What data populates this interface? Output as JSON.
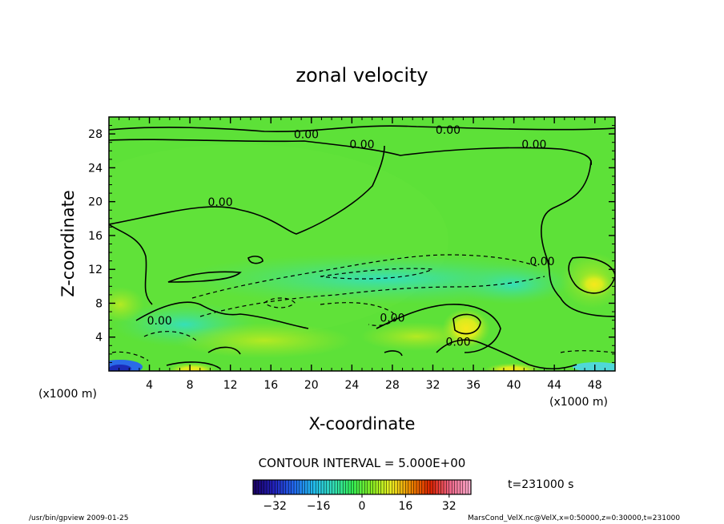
{
  "chart_data": {
    "type": "heatmap",
    "title": "zonal velocity",
    "xlabel": "X-coordinate",
    "ylabel": "Z-coordinate",
    "x_unit": "(x1000 m)",
    "y_unit": "(x1000 m)",
    "xlim": [
      0,
      50
    ],
    "ylim": [
      0,
      30
    ],
    "x_ticks": [
      4,
      8,
      12,
      16,
      20,
      24,
      28,
      32,
      36,
      40,
      44,
      48
    ],
    "y_ticks": [
      4,
      8,
      12,
      16,
      20,
      24,
      28
    ],
    "contour_interval_text": "CONTOUR INTERVAL = 5.000E+00",
    "time_text": "t=231000 s",
    "colorbar": {
      "range": [
        -40,
        40
      ],
      "ticks": [
        -32,
        -16,
        0,
        16,
        32
      ],
      "colors": [
        "#1a0066",
        "#2222bb",
        "#2266ee",
        "#22bbee",
        "#33ddbb",
        "#33ee55",
        "#88ee22",
        "#eeee22",
        "#ee8800",
        "#dd2200",
        "#ee6688",
        "#ffaacc"
      ]
    },
    "contour_labels": [
      {
        "x": 19.5,
        "z": 27.5,
        "text": "0.00"
      },
      {
        "x": 33.5,
        "z": 28.0,
        "text": "0.00"
      },
      {
        "x": 25.0,
        "z": 26.3,
        "text": "0.00"
      },
      {
        "x": 42.0,
        "z": 26.3,
        "text": "0.00"
      },
      {
        "x": 11.0,
        "z": 19.5,
        "text": "0.00"
      },
      {
        "x": 42.8,
        "z": 12.5,
        "text": "0.00"
      },
      {
        "x": 5.0,
        "z": 5.5,
        "text": "0.00"
      },
      {
        "x": 28.0,
        "z": 5.8,
        "text": "0.00"
      },
      {
        "x": 34.5,
        "z": 3.0,
        "text": "0.00"
      }
    ]
  },
  "footer": {
    "program": "/usr/bin/gpview   2009-01-25",
    "source": "MarsCond_VelX.nc@VelX,x=0:50000,z=0:30000,t=231000"
  }
}
